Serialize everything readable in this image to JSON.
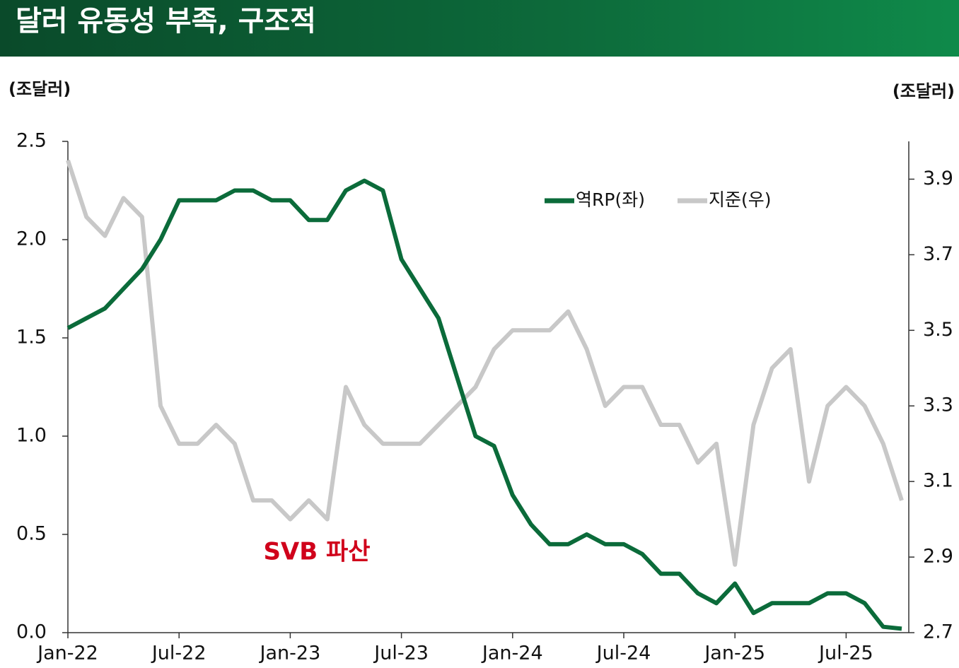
{
  "chart_data": {
    "type": "line",
    "title": "달러 유동성 부족, 구조적",
    "y_label": "(조달러)",
    "y2_label": "(조달러)",
    "annotation": "SVB 파산",
    "categories": [
      "Jan-22",
      null,
      null,
      null,
      null,
      null,
      "Jul-22",
      null,
      null,
      null,
      null,
      null,
      "Jan-23",
      null,
      null,
      null,
      null,
      null,
      "Jul-23",
      null,
      null,
      null,
      null,
      null,
      "Jan-24",
      null,
      null,
      null,
      null,
      null,
      "Jul-24",
      null,
      null,
      null,
      null,
      null,
      "Jan-25",
      null,
      null,
      null,
      null,
      null,
      "Jul-25",
      null,
      null,
      null
    ],
    "series": [
      {
        "name": "역RP(좌)",
        "color": "#0b6b3a",
        "values": [
          1.55,
          1.6,
          1.65,
          1.75,
          1.85,
          2.0,
          2.2,
          2.2,
          2.2,
          2.25,
          2.25,
          2.2,
          2.2,
          2.1,
          2.1,
          2.25,
          2.3,
          2.25,
          1.9,
          1.75,
          1.6,
          1.3,
          1.0,
          0.95,
          0.7,
          0.55,
          0.45,
          0.45,
          0.5,
          0.45,
          0.45,
          0.4,
          0.3,
          0.3,
          0.2,
          0.15,
          0.25,
          0.1,
          0.15,
          0.15,
          0.15,
          0.2,
          0.2,
          0.15,
          0.03,
          0.02
        ]
      },
      {
        "name": "지준(우)",
        "color": "#c8c8c8",
        "axis": "y2",
        "values": [
          3.95,
          3.8,
          3.75,
          3.85,
          3.8,
          3.3,
          3.2,
          3.2,
          3.25,
          3.2,
          3.05,
          3.05,
          3.0,
          3.05,
          3.0,
          3.35,
          3.25,
          3.2,
          3.2,
          3.2,
          3.25,
          3.3,
          3.35,
          3.45,
          3.5,
          3.5,
          3.5,
          3.55,
          3.45,
          3.3,
          3.35,
          3.35,
          3.25,
          3.25,
          3.15,
          3.2,
          2.88,
          3.25,
          3.4,
          3.45,
          3.1,
          3.3,
          3.35,
          3.3,
          3.2,
          3.05
        ]
      }
    ],
    "ylim": [
      0,
      2.5
    ],
    "yticks": [
      {
        "value": 0,
        "label": "0.0"
      },
      0.5,
      {
        "value": 1,
        "label": "1.0"
      },
      1.5,
      {
        "value": 2,
        "label": "2.0"
      },
      2.5
    ],
    "y2lim": [
      2.7,
      4.0
    ],
    "y2ticks": [
      2.7,
      2.9,
      3.1,
      3.3,
      3.5,
      3.7,
      3.9
    ],
    "legend": "top-right",
    "grid": false
  }
}
